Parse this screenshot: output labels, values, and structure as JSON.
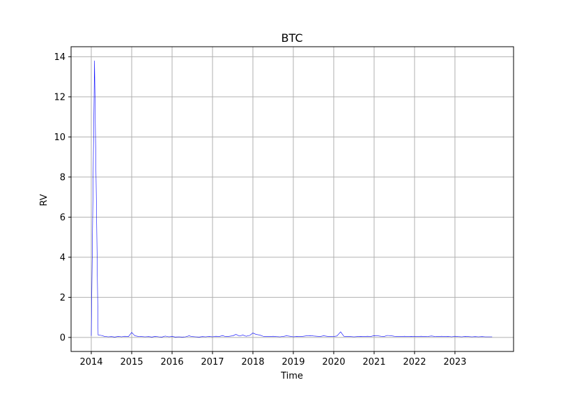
{
  "chart_data": {
    "type": "line",
    "title": "BTC",
    "xlabel": "Time",
    "ylabel": "RV",
    "x_tick_labels": [
      "2014",
      "2015",
      "2016",
      "2017",
      "2018",
      "2019",
      "2020",
      "2021",
      "2022",
      "2023"
    ],
    "y_tick_labels": [
      "0",
      "2",
      "4",
      "6",
      "8",
      "10",
      "12",
      "14"
    ],
    "xlim": [
      2013.5,
      2024.45
    ],
    "ylim": [
      -0.7,
      14.5
    ],
    "grid": true,
    "line_color": "#0000ff",
    "series": [
      {
        "x": [
          2014.0,
          2014.08,
          2014.17,
          2014.25,
          2014.33,
          2014.42,
          2014.5,
          2014.58,
          2014.67,
          2014.75,
          2014.83,
          2014.92,
          2015.0,
          2015.08,
          2015.17,
          2015.25,
          2015.33,
          2015.42,
          2015.5,
          2015.58,
          2015.67,
          2015.75,
          2015.83,
          2015.92,
          2016.0,
          2016.08,
          2016.17,
          2016.25,
          2016.33,
          2016.42,
          2016.5,
          2016.58,
          2016.67,
          2016.75,
          2016.83,
          2016.92,
          2017.0,
          2017.08,
          2017.17,
          2017.25,
          2017.33,
          2017.42,
          2017.5,
          2017.58,
          2017.67,
          2017.75,
          2017.83,
          2017.92,
          2018.0,
          2018.08,
          2018.17,
          2018.25,
          2018.33,
          2018.42,
          2018.5,
          2018.58,
          2018.67,
          2018.75,
          2018.83,
          2018.92,
          2019.0,
          2019.08,
          2019.17,
          2019.25,
          2019.33,
          2019.42,
          2019.5,
          2019.58,
          2019.67,
          2019.75,
          2019.83,
          2019.92,
          2020.0,
          2020.08,
          2020.17,
          2020.25,
          2020.33,
          2020.42,
          2020.5,
          2020.58,
          2020.67,
          2020.75,
          2020.83,
          2020.92,
          2021.0,
          2021.08,
          2021.17,
          2021.25,
          2021.33,
          2021.42,
          2021.5,
          2021.58,
          2021.67,
          2021.75,
          2021.83,
          2021.92,
          2022.0,
          2022.08,
          2022.17,
          2022.25,
          2022.33,
          2022.42,
          2022.5,
          2022.58,
          2022.67,
          2022.75,
          2022.83,
          2022.92,
          2023.0,
          2023.08,
          2023.17,
          2023.25,
          2023.33,
          2023.42,
          2023.5,
          2023.58,
          2023.67,
          2023.75,
          2023.83,
          2023.92
        ],
        "y": [
          0.08,
          13.8,
          0.12,
          0.1,
          0.05,
          0.03,
          0.04,
          0.02,
          0.05,
          0.03,
          0.06,
          0.04,
          0.25,
          0.08,
          0.05,
          0.04,
          0.03,
          0.04,
          0.02,
          0.05,
          0.03,
          0.02,
          0.07,
          0.03,
          0.05,
          0.02,
          0.03,
          0.02,
          0.03,
          0.08,
          0.04,
          0.03,
          0.02,
          0.04,
          0.03,
          0.05,
          0.03,
          0.06,
          0.05,
          0.09,
          0.04,
          0.06,
          0.08,
          0.15,
          0.07,
          0.12,
          0.06,
          0.1,
          0.22,
          0.15,
          0.12,
          0.06,
          0.05,
          0.04,
          0.06,
          0.04,
          0.03,
          0.05,
          0.08,
          0.06,
          0.03,
          0.05,
          0.04,
          0.06,
          0.08,
          0.09,
          0.07,
          0.06,
          0.05,
          0.08,
          0.06,
          0.04,
          0.05,
          0.07,
          0.28,
          0.06,
          0.05,
          0.04,
          0.03,
          0.04,
          0.05,
          0.04,
          0.06,
          0.05,
          0.09,
          0.08,
          0.06,
          0.05,
          0.1,
          0.08,
          0.06,
          0.05,
          0.04,
          0.06,
          0.04,
          0.05,
          0.04,
          0.05,
          0.06,
          0.04,
          0.05,
          0.07,
          0.05,
          0.04,
          0.06,
          0.04,
          0.05,
          0.03,
          0.06,
          0.04,
          0.03,
          0.05,
          0.04,
          0.03,
          0.04,
          0.03,
          0.04,
          0.03,
          0.03,
          0.03
        ]
      }
    ]
  }
}
